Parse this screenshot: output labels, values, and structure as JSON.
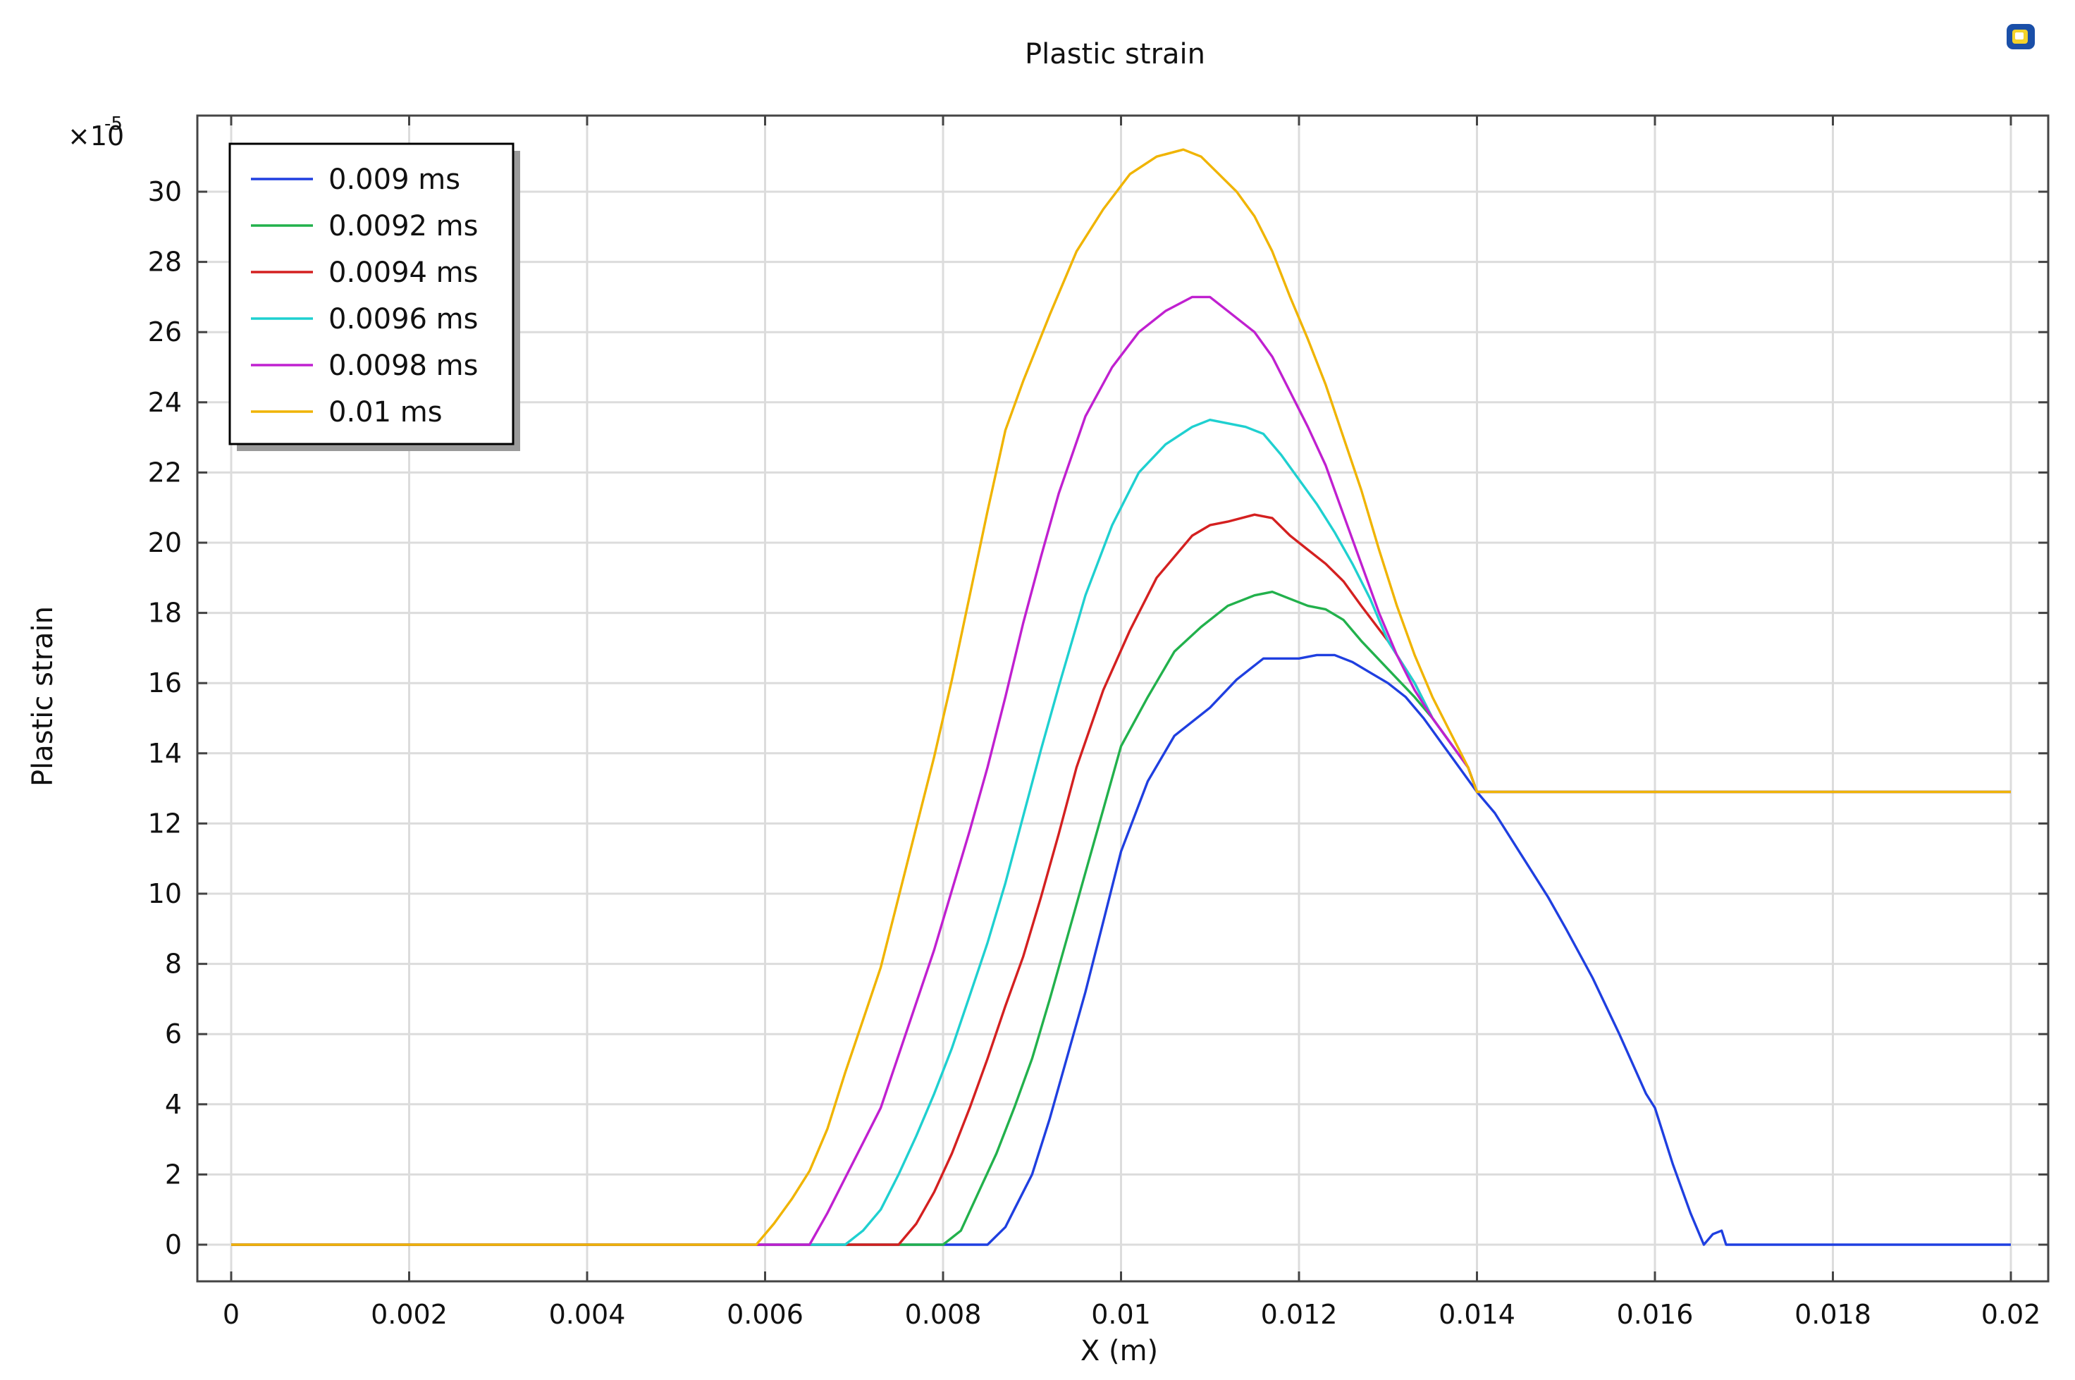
{
  "chart_data": {
    "type": "line",
    "title": "Plastic strain",
    "xlabel": "X (m)",
    "ylabel": "Plastic strain",
    "y_multiplier": "×10",
    "y_multiplier_exp": "-5",
    "xlim": [
      0,
      0.02
    ],
    "ylim": [
      -1,
      32
    ],
    "xticks": [
      0,
      0.002,
      0.004,
      0.006,
      0.008,
      0.01,
      0.012,
      0.014,
      0.016,
      0.018,
      0.02
    ],
    "xtick_labels": [
      "0",
      "0.002",
      "0.004",
      "0.006",
      "0.008",
      "0.01",
      "0.012",
      "0.014",
      "0.016",
      "0.018",
      "0.02"
    ],
    "yticks": [
      0,
      2,
      4,
      6,
      8,
      10,
      12,
      14,
      16,
      18,
      20,
      22,
      24,
      26,
      28,
      30
    ],
    "ytick_labels": [
      "0",
      "2",
      "4",
      "6",
      "8",
      "10",
      "12",
      "14",
      "16",
      "18",
      "20",
      "22",
      "24",
      "26",
      "28",
      "30"
    ],
    "grid": true,
    "legend_position": "top-left",
    "series": [
      {
        "name": "0.009 ms",
        "color": "#1f3fe0",
        "x": [
          0,
          0.0085,
          0.0087,
          0.0088,
          0.009,
          0.0092,
          0.0094,
          0.0096,
          0.0098,
          0.01,
          0.0103,
          0.0106,
          0.011,
          0.0113,
          0.0116,
          0.0118,
          0.012,
          0.0122,
          0.0124,
          0.0126,
          0.0128,
          0.013,
          0.0132,
          0.0134,
          0.0136,
          0.0138,
          0.014,
          0.0142,
          0.0145,
          0.0148,
          0.015,
          0.0153,
          0.0156,
          0.0159,
          0.016,
          0.0162,
          0.0164,
          0.01655,
          0.01665,
          0.01675,
          0.0168,
          0.02
        ],
        "y": [
          0,
          0,
          0.5,
          1,
          2,
          3.6,
          5.4,
          7.2,
          9.2,
          11.2,
          13.2,
          14.5,
          15.3,
          16.1,
          16.7,
          16.7,
          16.7,
          16.8,
          16.8,
          16.6,
          16.3,
          16.0,
          15.6,
          15.0,
          14.3,
          13.6,
          12.9,
          12.3,
          11.1,
          9.9,
          9.0,
          7.6,
          6.0,
          4.3,
          3.9,
          2.3,
          0.9,
          0,
          0.3,
          0.4,
          0,
          0
        ]
      },
      {
        "name": "0.0092 ms",
        "color": "#22b14c",
        "x": [
          0,
          0.008,
          0.0082,
          0.0084,
          0.0086,
          0.0088,
          0.009,
          0.0092,
          0.0094,
          0.0096,
          0.0098,
          0.01,
          0.0103,
          0.0106,
          0.0109,
          0.0112,
          0.0115,
          0.0117,
          0.0119,
          0.0121,
          0.0123,
          0.0125,
          0.0127,
          0.013,
          0.0133,
          0.0135,
          0.0137,
          0.0139,
          0.014,
          0.02
        ],
        "y": [
          0,
          0,
          0.4,
          1.5,
          2.6,
          3.9,
          5.3,
          7.0,
          8.8,
          10.6,
          12.4,
          14.2,
          15.6,
          16.9,
          17.6,
          18.2,
          18.5,
          18.6,
          18.4,
          18.2,
          18.1,
          17.8,
          17.2,
          16.4,
          15.6,
          15.0,
          14.3,
          13.6,
          12.9,
          12.9
        ]
      },
      {
        "name": "0.0094 ms",
        "color": "#d42020",
        "x": [
          0,
          0.0075,
          0.0077,
          0.0079,
          0.0081,
          0.0083,
          0.0085,
          0.0087,
          0.0089,
          0.0091,
          0.0093,
          0.0095,
          0.0098,
          0.0101,
          0.0104,
          0.0108,
          0.011,
          0.0112,
          0.0115,
          0.0117,
          0.0119,
          0.0121,
          0.0123,
          0.0125,
          0.0127,
          0.013,
          0.0133,
          0.0135,
          0.0137,
          0.0139,
          0.014,
          0.02
        ],
        "y": [
          0,
          0,
          0.6,
          1.5,
          2.6,
          3.9,
          5.3,
          6.8,
          8.2,
          9.9,
          11.7,
          13.6,
          15.8,
          17.5,
          19.0,
          20.2,
          20.5,
          20.6,
          20.8,
          20.7,
          20.2,
          19.8,
          19.4,
          18.9,
          18.2,
          17.2,
          16.0,
          15.0,
          14.3,
          13.6,
          12.9,
          12.9
        ]
      },
      {
        "name": "0.0096 ms",
        "color": "#1fd0d0",
        "x": [
          0,
          0.0069,
          0.0071,
          0.0073,
          0.0075,
          0.0077,
          0.0079,
          0.0081,
          0.0083,
          0.0085,
          0.0087,
          0.0089,
          0.0091,
          0.0093,
          0.0096,
          0.0099,
          0.0102,
          0.0105,
          0.0108,
          0.011,
          0.0112,
          0.0114,
          0.0116,
          0.0118,
          0.012,
          0.0122,
          0.0124,
          0.0126,
          0.0128,
          0.013,
          0.0133,
          0.0135,
          0.0137,
          0.0139,
          0.014,
          0.02
        ],
        "y": [
          0,
          0,
          0.4,
          1.0,
          2.0,
          3.1,
          4.3,
          5.6,
          7.1,
          8.6,
          10.3,
          12.2,
          14.1,
          15.9,
          18.5,
          20.5,
          22.0,
          22.8,
          23.3,
          23.5,
          23.4,
          23.3,
          23.1,
          22.5,
          21.8,
          21.1,
          20.3,
          19.4,
          18.4,
          17.2,
          16.0,
          15.0,
          14.3,
          13.6,
          12.9,
          12.9
        ]
      },
      {
        "name": "0.0098 ms",
        "color": "#c020d0",
        "x": [
          0,
          0.0065,
          0.0067,
          0.0069,
          0.0071,
          0.0073,
          0.0075,
          0.0077,
          0.0079,
          0.0081,
          0.0083,
          0.0085,
          0.0087,
          0.0089,
          0.0091,
          0.0093,
          0.0096,
          0.0099,
          0.0102,
          0.0105,
          0.0108,
          0.011,
          0.0112,
          0.0115,
          0.0117,
          0.0119,
          0.0121,
          0.0123,
          0.0125,
          0.0127,
          0.0129,
          0.0131,
          0.0133,
          0.0135,
          0.0137,
          0.0139,
          0.014,
          0.02
        ],
        "y": [
          0,
          0,
          0.9,
          1.9,
          2.9,
          3.9,
          5.4,
          6.9,
          8.4,
          10.1,
          11.8,
          13.6,
          15.6,
          17.7,
          19.6,
          21.4,
          23.6,
          25.0,
          26.0,
          26.6,
          27.0,
          27.0,
          26.6,
          26.0,
          25.3,
          24.3,
          23.3,
          22.2,
          20.8,
          19.4,
          18.0,
          16.8,
          15.8,
          15.0,
          14.3,
          13.6,
          12.9,
          12.9
        ]
      },
      {
        "name": "0.01 ms",
        "color": "#f0b400",
        "x": [
          0,
          0.0059,
          0.0061,
          0.0063,
          0.0065,
          0.0067,
          0.0069,
          0.0071,
          0.0073,
          0.0075,
          0.0077,
          0.0079,
          0.0081,
          0.0083,
          0.0085,
          0.0087,
          0.0089,
          0.0092,
          0.0095,
          0.0098,
          0.0101,
          0.0104,
          0.0107,
          0.0109,
          0.0111,
          0.0113,
          0.0115,
          0.0117,
          0.0119,
          0.0121,
          0.0123,
          0.0125,
          0.0127,
          0.0129,
          0.0131,
          0.0133,
          0.0135,
          0.0137,
          0.0139,
          0.014,
          0.02
        ],
        "y": [
          0,
          0,
          0.6,
          1.3,
          2.1,
          3.3,
          4.9,
          6.4,
          7.9,
          9.9,
          11.9,
          13.9,
          16.1,
          18.5,
          20.9,
          23.2,
          24.6,
          26.5,
          28.3,
          29.5,
          30.5,
          31.0,
          31.2,
          31.0,
          30.5,
          30.0,
          29.3,
          28.3,
          27.0,
          25.8,
          24.5,
          23.0,
          21.5,
          19.8,
          18.2,
          16.8,
          15.6,
          14.6,
          13.6,
          12.9,
          12.9
        ]
      }
    ]
  }
}
